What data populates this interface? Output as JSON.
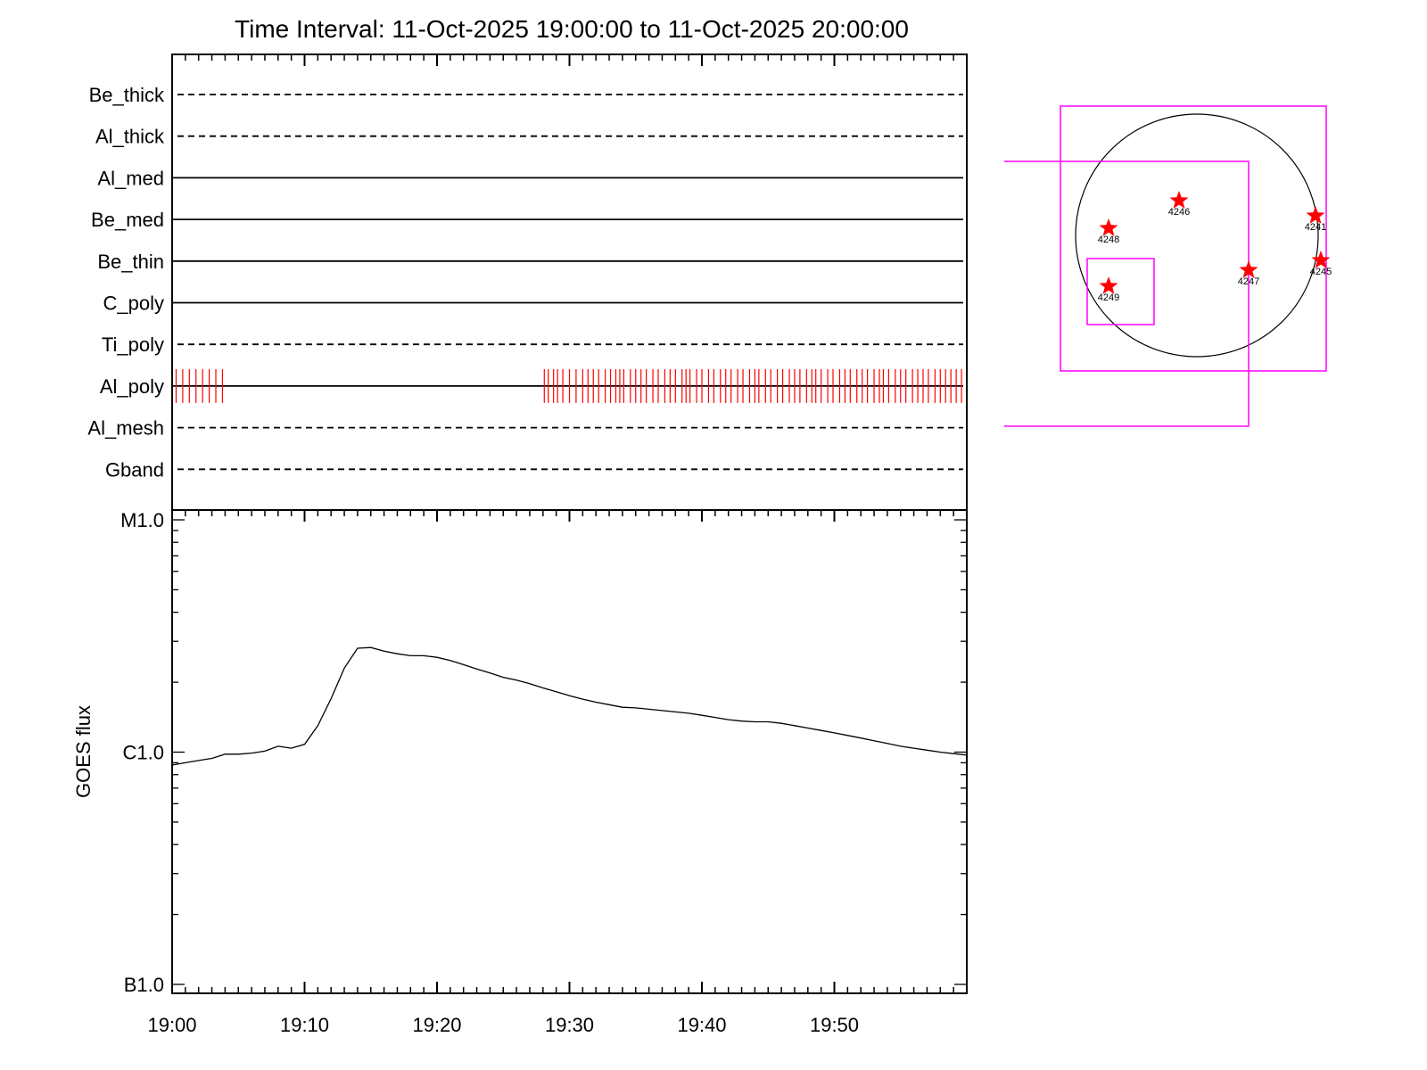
{
  "title": "Time Interval: 11-Oct-2025 19:00:00 to 11-Oct-2025 20:00:00",
  "colors": {
    "axes": "#000000",
    "events": "#ff0000",
    "fov": "#ff00ff",
    "stars": "#ff0000",
    "curve": "#000000"
  },
  "channels": [
    {
      "name": "Be_thick",
      "line": "dashed"
    },
    {
      "name": "Al_thick",
      "line": "dashed"
    },
    {
      "name": "Al_med",
      "line": "solid"
    },
    {
      "name": "Be_med",
      "line": "solid"
    },
    {
      "name": "Be_thin",
      "line": "solid"
    },
    {
      "name": "C_poly",
      "line": "solid"
    },
    {
      "name": "Ti_poly",
      "line": "dashed"
    },
    {
      "name": "Al_poly",
      "line": "solid"
    },
    {
      "name": "Al_mesh",
      "line": "dashed"
    },
    {
      "name": "Gband",
      "line": "dashed"
    }
  ],
  "al_poly_events_minutes": [
    0.3,
    0.8,
    1.3,
    1.8,
    2.3,
    2.8,
    3.3,
    3.8,
    28.1,
    28.4,
    28.8,
    29.1,
    29.5,
    30.0,
    30.5,
    31.0,
    31.4,
    31.8,
    32.2,
    32.7,
    33.1,
    33.5,
    33.8,
    34.1,
    34.6,
    35.0,
    35.4,
    35.8,
    36.3,
    36.7,
    37.2,
    37.6,
    38.0,
    38.5,
    38.8,
    39.1,
    39.6,
    40.0,
    40.5,
    40.9,
    41.4,
    41.8,
    42.2,
    42.7,
    43.1,
    43.6,
    44.0,
    44.3,
    44.8,
    45.2,
    45.7,
    46.1,
    46.6,
    47.0,
    47.4,
    47.9,
    48.3,
    48.6,
    49.0,
    49.5,
    49.9,
    50.4,
    50.8,
    51.2,
    51.7,
    52.1,
    52.5,
    53.0,
    53.4,
    53.7,
    54.1,
    54.6,
    55.0,
    55.4,
    55.9,
    56.3,
    56.7,
    57.1,
    57.6,
    58.0,
    58.4,
    58.8,
    59.2,
    59.6
  ],
  "chart_data": {
    "type": "line",
    "title": "Time Interval: 11-Oct-2025 19:00:00 to 11-Oct-2025 20:00:00",
    "xlabel": "",
    "ylabel": "GOES flux",
    "x_tick_labels": [
      "19:00",
      "19:10",
      "19:20",
      "19:30",
      "19:40",
      "19:50"
    ],
    "x_range_minutes": [
      0,
      60
    ],
    "yscale": "log",
    "ylim": [
      1e-07,
      1e-05
    ],
    "y_tick_labels": [
      "M1.0",
      "C1.0",
      "B1.0"
    ],
    "series": [
      {
        "x_minutes": [
          0,
          1,
          2,
          3,
          4,
          5,
          6,
          7,
          8,
          9,
          10,
          11,
          12,
          13,
          14,
          15,
          16,
          17,
          18,
          19,
          20,
          21,
          22,
          23,
          24,
          25,
          26,
          27,
          28,
          29,
          30,
          31,
          32,
          33,
          34,
          35,
          36,
          37,
          38,
          39,
          40,
          41,
          42,
          43,
          44,
          45,
          46,
          47,
          48,
          49,
          50,
          51,
          52,
          53,
          54,
          55,
          56,
          57,
          58,
          59,
          60
        ],
        "values": [
          8.8e-07,
          9e-07,
          9.2e-07,
          9.4e-07,
          9.8e-07,
          9.8e-07,
          9.9e-07,
          1.01e-06,
          1.06e-06,
          1.04e-06,
          1.08e-06,
          1.3e-06,
          1.7e-06,
          2.3e-06,
          2.8e-06,
          2.82e-06,
          2.72e-06,
          2.65e-06,
          2.6e-06,
          2.6e-06,
          2.56e-06,
          2.48e-06,
          2.38e-06,
          2.28e-06,
          2.19e-06,
          2.1e-06,
          2.04e-06,
          1.97e-06,
          1.89e-06,
          1.82e-06,
          1.75e-06,
          1.69e-06,
          1.64e-06,
          1.6e-06,
          1.56e-06,
          1.55e-06,
          1.53e-06,
          1.51e-06,
          1.49e-06,
          1.47e-06,
          1.44e-06,
          1.41e-06,
          1.38e-06,
          1.36e-06,
          1.35e-06,
          1.35e-06,
          1.33e-06,
          1.3e-06,
          1.27e-06,
          1.24e-06,
          1.21e-06,
          1.18e-06,
          1.15e-06,
          1.12e-06,
          1.09e-06,
          1.06e-06,
          1.04e-06,
          1.02e-06,
          1e-06,
          9.85e-07,
          9.7e-07
        ]
      }
    ]
  },
  "solar_disk": {
    "regions": [
      "4241",
      "4245",
      "4246",
      "4247",
      "4248",
      "4249"
    ]
  }
}
